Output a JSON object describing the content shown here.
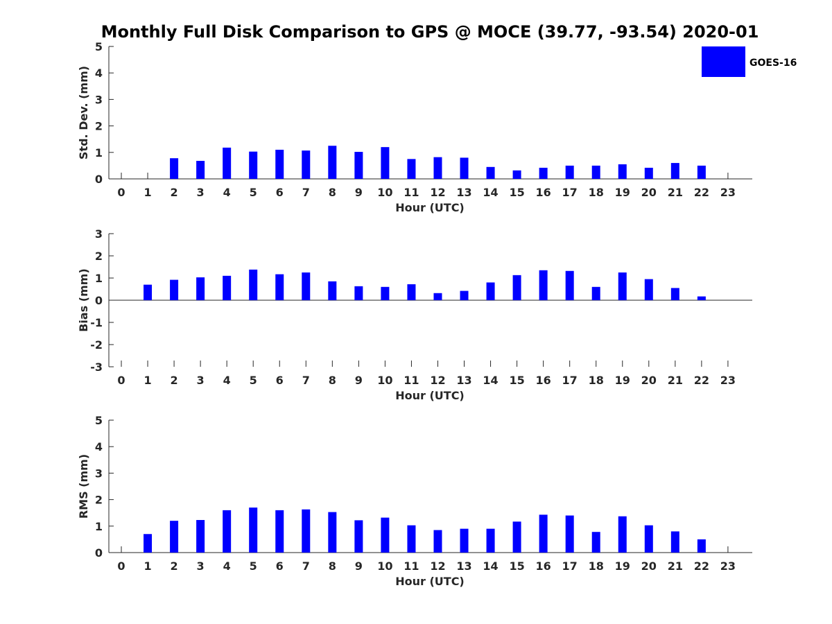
{
  "chart_data": [
    {
      "type": "bar",
      "title": "Monthly Full Disk Comparison to GPS @ MOCE (39.77, -93.54) 2020-01",
      "xlabel": "Hour (UTC)",
      "ylabel": "Std. Dev. (mm)",
      "ylim": [
        0,
        5
      ],
      "yticks": [
        0,
        1,
        2,
        3,
        4,
        5
      ],
      "categories": [
        "0",
        "1",
        "2",
        "3",
        "4",
        "5",
        "6",
        "7",
        "8",
        "9",
        "10",
        "11",
        "12",
        "13",
        "14",
        "15",
        "16",
        "17",
        "18",
        "19",
        "20",
        "21",
        "22",
        "23"
      ],
      "series": [
        {
          "name": "GOES-16",
          "color": "#0000ff",
          "values": [
            null,
            null,
            0.78,
            0.68,
            1.18,
            1.03,
            1.1,
            1.07,
            1.25,
            1.02,
            1.2,
            0.75,
            0.82,
            0.8,
            0.45,
            0.32,
            0.42,
            0.5,
            0.5,
            0.55,
            0.42,
            0.6,
            0.5,
            null
          ]
        }
      ],
      "legend": {
        "entries": [
          "GOES-16"
        ],
        "position": "top-right"
      }
    },
    {
      "type": "bar",
      "xlabel": "Hour (UTC)",
      "ylabel": "Bias (mm)",
      "ylim": [
        -3,
        3
      ],
      "yticks": [
        -3,
        -2,
        -1,
        0,
        1,
        2,
        3
      ],
      "categories": [
        "0",
        "1",
        "2",
        "3",
        "4",
        "5",
        "6",
        "7",
        "8",
        "9",
        "10",
        "11",
        "12",
        "13",
        "14",
        "15",
        "16",
        "17",
        "18",
        "19",
        "20",
        "21",
        "22",
        "23"
      ],
      "series": [
        {
          "name": "GOES-16",
          "color": "#0000ff",
          "values": [
            null,
            0.7,
            0.92,
            1.03,
            1.1,
            1.38,
            1.17,
            1.25,
            0.85,
            0.63,
            0.6,
            0.72,
            0.32,
            0.42,
            0.8,
            1.13,
            1.35,
            1.32,
            0.6,
            1.25,
            0.95,
            0.55,
            0.17,
            null
          ]
        }
      ]
    },
    {
      "type": "bar",
      "xlabel": "Hour (UTC)",
      "ylabel": "RMS (mm)",
      "ylim": [
        0,
        5
      ],
      "yticks": [
        0,
        1,
        2,
        3,
        4,
        5
      ],
      "categories": [
        "0",
        "1",
        "2",
        "3",
        "4",
        "5",
        "6",
        "7",
        "8",
        "9",
        "10",
        "11",
        "12",
        "13",
        "14",
        "15",
        "16",
        "17",
        "18",
        "19",
        "20",
        "21",
        "22",
        "23"
      ],
      "series": [
        {
          "name": "GOES-16",
          "color": "#0000ff",
          "values": [
            null,
            0.7,
            1.2,
            1.23,
            1.6,
            1.7,
            1.6,
            1.63,
            1.53,
            1.22,
            1.32,
            1.03,
            0.85,
            0.9,
            0.9,
            1.17,
            1.43,
            1.4,
            0.78,
            1.37,
            1.03,
            0.8,
            0.5,
            null
          ]
        }
      ]
    }
  ]
}
